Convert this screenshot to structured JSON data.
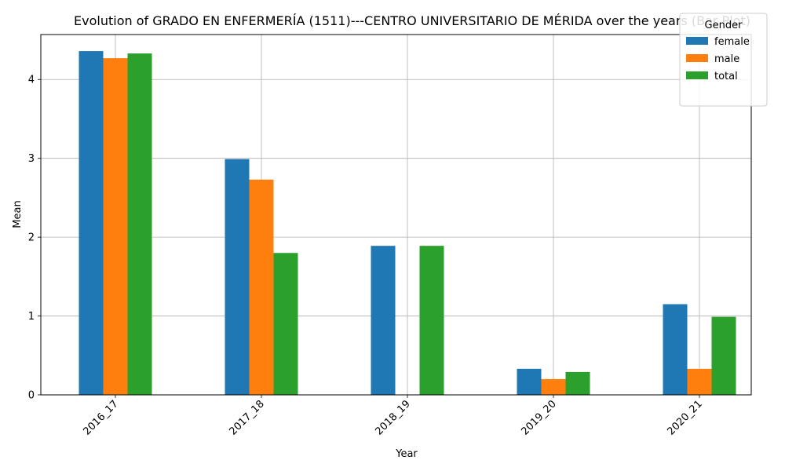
{
  "chart_data": {
    "type": "bar",
    "title": "Evolution of GRADO EN ENFERMERÍA (1511)---CENTRO UNIVERSITARIO DE MÉRIDA over the years (Bar Plot)",
    "xlabel": "Year",
    "ylabel": "Mean",
    "categories": [
      "2016_17",
      "2017_18",
      "2018_19",
      "2019_20",
      "2020_21"
    ],
    "ylim": [
      0,
      4.57
    ],
    "yticks": [
      0,
      1,
      2,
      3,
      4
    ],
    "grid": true,
    "legend": {
      "title": "Gender",
      "placement": "top-right"
    },
    "series": [
      {
        "name": "female",
        "color": "#1f77b4",
        "values": [
          4.36,
          2.99,
          1.89,
          0.33,
          1.15
        ]
      },
      {
        "name": "male",
        "color": "#ff7f0e",
        "values": [
          4.27,
          2.73,
          null,
          0.2,
          0.33
        ]
      },
      {
        "name": "total",
        "color": "#2ca02c",
        "values": [
          4.33,
          1.8,
          1.89,
          0.29,
          0.99
        ]
      }
    ]
  }
}
